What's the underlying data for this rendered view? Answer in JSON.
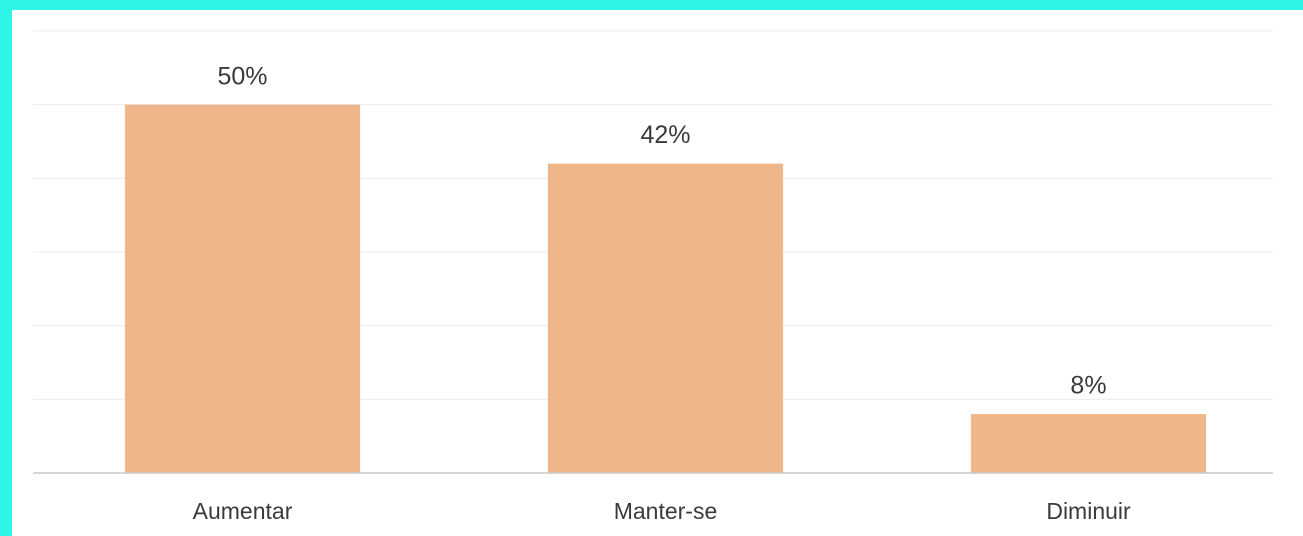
{
  "chart_data": {
    "type": "bar",
    "categories": [
      "Aumentar",
      "Manter-se",
      "Diminuir"
    ],
    "values": [
      50,
      42,
      8
    ],
    "value_labels": [
      "50%",
      "42%",
      "8%"
    ],
    "color": "#efb789",
    "ylim": [
      0,
      60
    ],
    "yticks": [
      0,
      10,
      20,
      30,
      40,
      50,
      60
    ],
    "grid": true
  }
}
